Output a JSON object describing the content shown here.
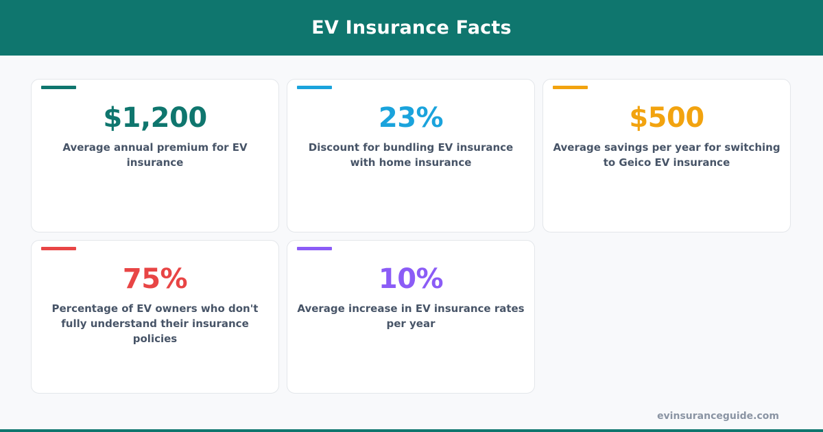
{
  "header": {
    "title": "EV Insurance Facts"
  },
  "facts": [
    {
      "value": "$1,200",
      "description": "Average annual premium for EV insurance",
      "accent_color": "#0f766e"
    },
    {
      "value": "23%",
      "description": "Discount for bundling EV insurance with home insurance",
      "accent_color": "#1aa3dc"
    },
    {
      "value": "$500",
      "description": "Average savings per year for switching to Geico EV insurance",
      "accent_color": "#f2a30f"
    },
    {
      "value": "75%",
      "description": "Percentage of EV owners who don't fully understand their insurance policies",
      "accent_color": "#e84545"
    },
    {
      "value": "10%",
      "description": "Average increase in EV insurance rates per year",
      "accent_color": "#8b5cf6"
    }
  ],
  "footer": {
    "site": "evinsuranceguide.com"
  },
  "colors": {
    "brand": "#0f766e",
    "background": "#f8f9fb",
    "text_muted": "#475467"
  }
}
